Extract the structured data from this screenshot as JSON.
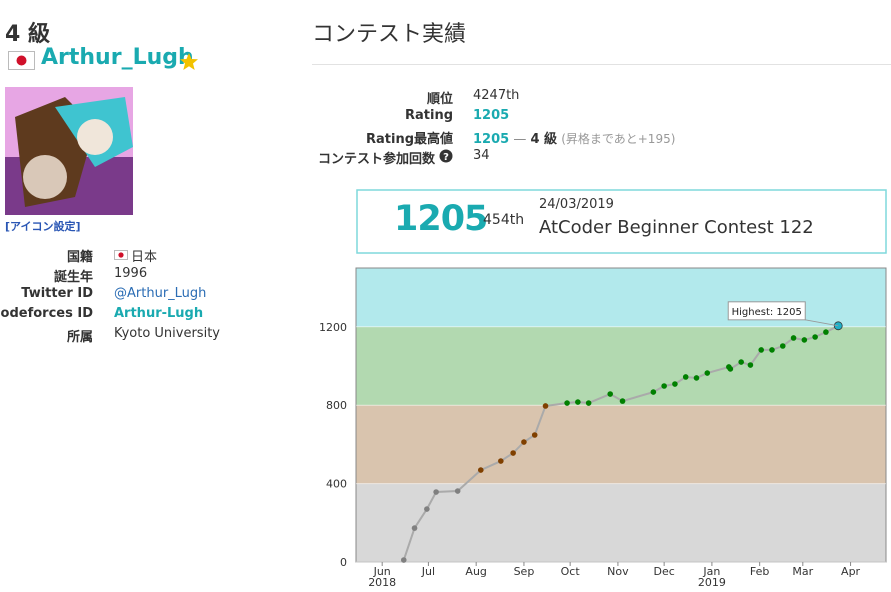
{
  "profile": {
    "rank": "4 級",
    "username": "Arthur_Lugh",
    "icon_setting": "[アイコン設定]",
    "details": [
      {
        "label": "国籍",
        "value": "日本"
      },
      {
        "label": "誕生年",
        "value": "1996"
      },
      {
        "label": "Twitter ID",
        "value": "@Arthur_Lugh"
      },
      {
        "label": "Codeforces ID",
        "value": "Arthur-Lugh"
      },
      {
        "label": "所属",
        "value": "Kyoto University"
      }
    ]
  },
  "contest": {
    "title": "コンテスト実績",
    "rank": {
      "label": "順位",
      "value": "4247th"
    },
    "rating": {
      "label": "Rating",
      "value": "1205"
    },
    "highest": {
      "label": "Rating最高値",
      "value": "1205",
      "separator": "—",
      "rank": "4 級",
      "note": "(昇格まであと+195)"
    },
    "count": {
      "label": "コンテスト参加回数",
      "value": "34"
    }
  },
  "summary": {
    "rating": "1205",
    "place": "454th",
    "date": "24/03/2019",
    "contest": "AtCoder Beginner Contest 122"
  },
  "chart_data": {
    "type": "line",
    "x": [
      "2018-06-15",
      "2018-06-22",
      "2018-06-30",
      "2018-07-06",
      "2018-07-20",
      "2018-08-04",
      "2018-08-17",
      "2018-08-25",
      "2018-09-01",
      "2018-09-08",
      "2018-09-15",
      "2018-09-29",
      "2018-10-06",
      "2018-10-13",
      "2018-10-27",
      "2018-11-04",
      "2018-11-24",
      "2018-12-01",
      "2018-12-08",
      "2018-12-15",
      "2018-12-22",
      "2018-12-29",
      "2019-01-12",
      "2019-01-13",
      "2019-01-20",
      "2019-01-26",
      "2019-02-02",
      "2019-02-09",
      "2019-02-16",
      "2019-02-23",
      "2019-03-02",
      "2019-03-09",
      "2019-03-16",
      "2019-03-24"
    ],
    "values": [
      10,
      173,
      270,
      357,
      362,
      469,
      515,
      556,
      612,
      648,
      796,
      811,
      816,
      811,
      857,
      821,
      867,
      898,
      908,
      944,
      939,
      964,
      995,
      985,
      1020,
      1005,
      1082,
      1082,
      1102,
      1143,
      1133,
      1148,
      1173,
      1205
    ],
    "xlim": [
      "2018-05-15",
      "2019-04-24"
    ],
    "ylim": [
      0,
      1500
    ],
    "yticks": [
      0,
      400,
      800,
      1200
    ],
    "xticks": [
      {
        "value": "2018-06-01",
        "label": "Jun"
      },
      {
        "value": "2018-07-01",
        "label": "Jul"
      },
      {
        "value": "2018-08-01",
        "label": "Aug"
      },
      {
        "value": "2018-09-01",
        "label": "Sep"
      },
      {
        "value": "2018-10-01",
        "label": "Oct"
      },
      {
        "value": "2018-11-01",
        "label": "Nov"
      },
      {
        "value": "2018-12-01",
        "label": "Dec"
      },
      {
        "value": "2019-01-01",
        "label": "Jan"
      },
      {
        "value": "2019-02-01",
        "label": "Feb"
      },
      {
        "value": "2019-03-01",
        "label": "Mar"
      },
      {
        "value": "2019-04-01",
        "label": "Apr"
      }
    ],
    "xtick_years": [
      {
        "value": "2018-06-01",
        "label": "2018"
      },
      {
        "value": "2019-01-01",
        "label": "2019"
      }
    ],
    "bands": [
      {
        "range": [
          0,
          400
        ],
        "color": "#d8d8d8",
        "point_color": "#808080"
      },
      {
        "range": [
          400,
          800
        ],
        "color": "#d9c4ae",
        "point_color": "#804000"
      },
      {
        "range": [
          800,
          1200
        ],
        "color": "#b2d9b0",
        "point_color": "#008000"
      },
      {
        "range": [
          1200,
          1500
        ],
        "color": "#b2e9ec",
        "point_color": "#20b0c8"
      }
    ],
    "line_color": "#aaaaaa",
    "annotation": "Highest: 1205"
  }
}
